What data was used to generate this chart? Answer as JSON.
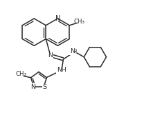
{
  "bg": "#ffffff",
  "lc": "#2a2a2a",
  "lw": 1.1,
  "fs": 6.5,
  "xlim": [
    0,
    10
  ],
  "ylim": [
    0,
    8.3
  ]
}
